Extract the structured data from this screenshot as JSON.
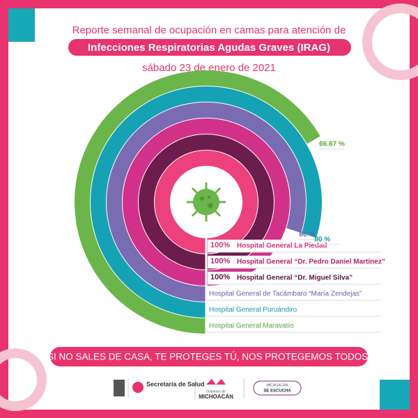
{
  "chart_data": {
    "type": "radial-bar",
    "title": "Reporte semanal de ocupación en camas para atención de",
    "subtitle": "Infecciones Respiratorias Agudas Graves (IRAG)",
    "date": "sábado 23 de enero de 2021",
    "ylim": [
      0,
      100
    ],
    "categories": [
      "Hospital General La Piedad",
      "Hospital General “Dr. Pedro Daniel Martínez”",
      "Hospital General “Dr. Miguel Silva”",
      "Hospital General de Tacámbaro “María Zendejas”",
      "Hospital General Puruándiro",
      "Hospital General Maravatío"
    ],
    "values": [
      100,
      100,
      100,
      80,
      80,
      66.67
    ],
    "value_labels": [
      "100%",
      "100%",
      "100%",
      "80 %",
      "80 %",
      "66.67 %"
    ],
    "colors": [
      "#ec417d",
      "#6c1d4b",
      "#d2318a",
      "#7a6cb2",
      "#16a2b5",
      "#6bb64a"
    ],
    "label_colors": [
      "#d6317c",
      "#b3246b",
      "#5e1640",
      "#6f61a8",
      "#1699ac",
      "#5aa83a"
    ]
  },
  "slogan": "SI NO SALES DE CASA, TE PROTEGES TÚ, NOS PROTEGEMOS TODOS.",
  "footer": {
    "health": "Secretaría de Salud",
    "gov_top": "Gobierno de",
    "gov": "MICHOACÁN",
    "listen_top": "MICHOACÁN",
    "listen": "SE ESCUCHA"
  }
}
